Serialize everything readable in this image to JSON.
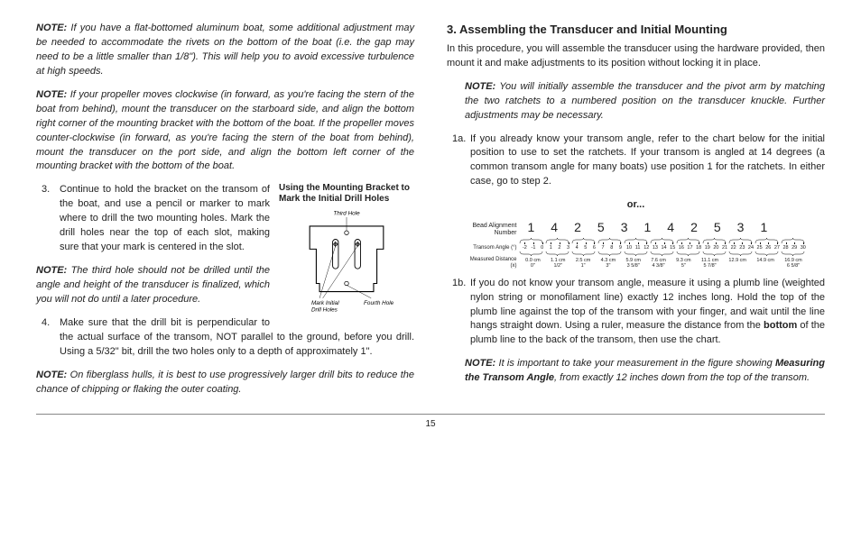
{
  "left": {
    "note1": "If you have a flat-bottomed aluminum boat, some additional adjustment may be needed to accommodate the rivets on the bottom of the boat (i.e. the gap may need to be a little smaller than 1/8\"). This will help you to avoid excessive turbulence at high speeds.",
    "note2": "If your propeller moves clockwise (in forward, as you're facing the stern of the boat from behind), mount the transducer on the starboard side, and align the bottom right corner of the mounting bracket with the bottom of the boat. If the propeller moves counter-clockwise (in forward, as you're facing the stern of the boat from behind), mount the transducer on the port side, and align the bottom left corner of the mounting bracket with the bottom of the boat.",
    "step3": "Continue to hold the bracket on the transom of the boat, and use a pencil or marker to mark where to drill the two mounting holes. Mark the drill holes near the top of each slot, making sure that your mark is centered in the slot.",
    "note3": "The third hole should not be drilled until the angle and height of the transducer is finalized, which you will not do until a later procedure.",
    "step4": "Make sure that the drill bit is perpendicular to the actual surface of the transom, NOT parallel to the ground, before you drill. Using a 5/32\" bit, drill the two holes only to a depth of approximately 1\".",
    "note4": "On fiberglass hulls, it is best to use progressively larger drill bits to reduce the chance of chipping or flaking the outer coating.",
    "figCaption": "Using the Mounting Bracket to Mark the Initial Drill Holes",
    "figLabels": {
      "third": "Third Hole",
      "fourth": "Fourth Hole",
      "mark": "Mark Initial Drill Holes"
    }
  },
  "right": {
    "heading": "3. Assembling the Transducer and Initial Mounting",
    "intro": "In this procedure, you will assemble the transducer using the hardware provided, then mount it and make adjustments to its position without locking it in place.",
    "noteA": "You will initially assemble the transducer and the pivot arm by matching the two ratchets to a numbered position on the transducer knuckle. Further adjustments may be necessary.",
    "step1a_num": "1a.",
    "step1a": "If you already know your transom angle, refer to the chart below for the initial position to use to set the ratchets. If your transom is angled at 14 degrees (a common transom angle for many boats) use position 1 for the ratchets. In either case, go to step 2.",
    "or": "or...",
    "step1b_num": "1b.",
    "step1b_a": "If you do not know your transom angle, measure it using a plumb line (weighted nylon string or monofilament line) exactly 12 inches long. Hold the top of the plumb line against the top of the transom with your finger, and wait until the line hangs straight down. Using a ruler, measure the distance from the ",
    "step1b_bold": "bottom",
    "step1b_b": " of the plumb line to the back of the transom, then use the chart.",
    "noteB_a": "It is important to take your measurement in the figure showing ",
    "noteB_bold": "Measuring the Transom Angle",
    "noteB_b": ", from exactly 12 inches down from the top of the transom.",
    "chart": {
      "beadLabel": "Bead Alignment Number",
      "beadNums": [
        "1",
        "4",
        "2",
        "5",
        "3",
        "1",
        "4",
        "2",
        "5",
        "3",
        "1"
      ],
      "angleLabel": "Transom Angle (°)",
      "angles": [
        "-2",
        "-1",
        "0",
        "1",
        "2",
        "3",
        "4",
        "5",
        "6",
        "7",
        "8",
        "9",
        "10",
        "11",
        "12",
        "13",
        "14",
        "15",
        "16",
        "17",
        "18",
        "19",
        "20",
        "21",
        "22",
        "23",
        "24",
        "25",
        "26",
        "27",
        "28",
        "29",
        "30"
      ],
      "distLabel": "Measured Distance (x)",
      "dists": [
        {
          "cm": "0.0 cm",
          "in": "0\""
        },
        {
          "cm": "1.1 cm",
          "in": "1/2\""
        },
        {
          "cm": "2.5 cm",
          "in": "1\""
        },
        {
          "cm": "4.3 cm",
          "in": "3\""
        },
        {
          "cm": "5.9 cm",
          "in": "3 5/8\""
        },
        {
          "cm": "7.6 cm",
          "in": "4 3/8\""
        },
        {
          "cm": "9.3 cm",
          "in": "5\""
        },
        {
          "cm": "11.1 cm",
          "in": "5 7/8\""
        },
        {
          "cm": "12.9 cm",
          "in": "",
          "hide": true
        },
        {
          "cm": "14.9 cm",
          "in": "",
          "hide": true
        },
        {
          "cm": "16.9 cm",
          "in": "6 5/8\""
        }
      ]
    }
  },
  "pageNum": "15",
  "noteWord": "NOTE:"
}
